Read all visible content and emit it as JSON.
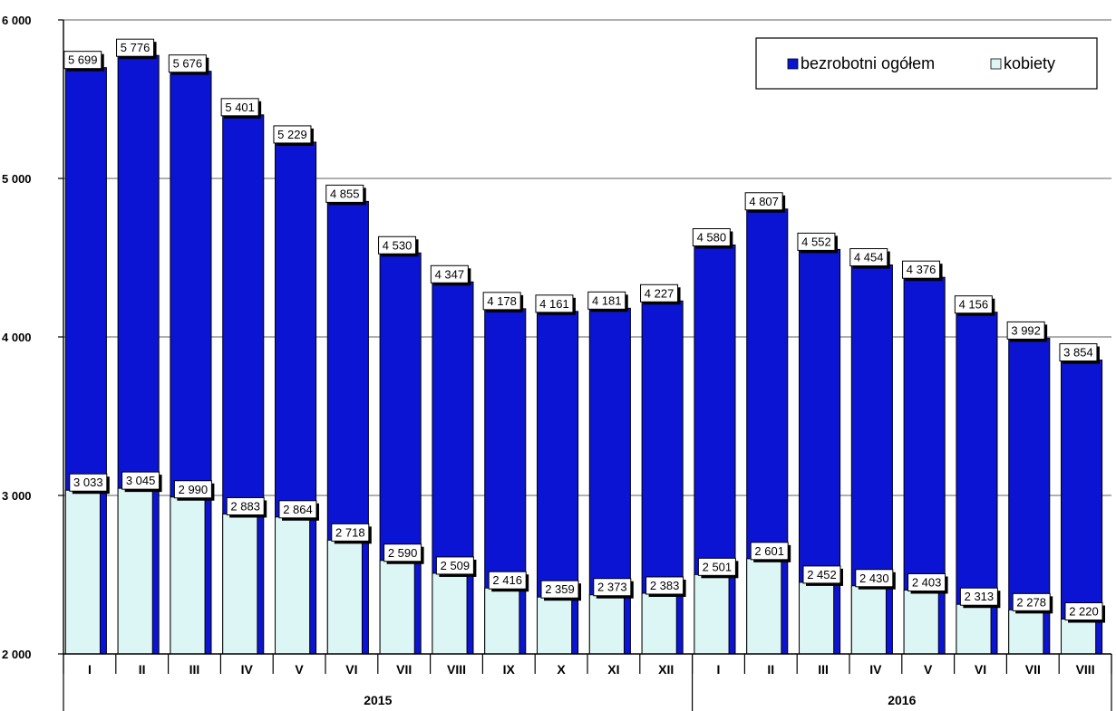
{
  "chart_data": {
    "type": "bar",
    "title": "",
    "xlabel": "",
    "ylabel": "",
    "ylim": [
      2000,
      6000
    ],
    "yticks": [
      2000,
      3000,
      4000,
      5000,
      6000
    ],
    "ytick_labels": [
      "2 000",
      "3 000",
      "4 000",
      "5 000",
      "6 000"
    ],
    "grid": true,
    "legend_position": "top-right",
    "categories": [
      "I",
      "II",
      "III",
      "IV",
      "V",
      "VI",
      "VII",
      "VIII",
      "IX",
      "X",
      "XI",
      "XII",
      "I",
      "II",
      "III",
      "IV",
      "V",
      "VI",
      "VII",
      "VIII"
    ],
    "groups": [
      {
        "label": "2015",
        "count": 12
      },
      {
        "label": "2016",
        "count": 8
      }
    ],
    "series": [
      {
        "name": "bezrobotni ogółem",
        "color": "#0a14d2",
        "values": [
          5699,
          5776,
          5676,
          5401,
          5229,
          4855,
          4530,
          4347,
          4178,
          4161,
          4181,
          4227,
          4580,
          4807,
          4552,
          4454,
          4376,
          4156,
          3992,
          3854
        ],
        "labels": [
          "5 699",
          "5 776",
          "5 676",
          "5 401",
          "5 229",
          "4 855",
          "4 530",
          "4 347",
          "4 178",
          "4 161",
          "4 181",
          "4 227",
          "4 580",
          "4 807",
          "4 552",
          "4 454",
          "4 376",
          "4 156",
          "3 992",
          "3 854"
        ]
      },
      {
        "name": "kobiety",
        "color": "#dcf6f6",
        "values": [
          3033,
          3045,
          2990,
          2883,
          2864,
          2718,
          2590,
          2509,
          2416,
          2359,
          2373,
          2383,
          2501,
          2601,
          2452,
          2430,
          2403,
          2313,
          2278,
          2220
        ],
        "labels": [
          "3 033",
          "3 045",
          "2 990",
          "2 883",
          "2 864",
          "2 718",
          "2 590",
          "2 509",
          "2 416",
          "2 359",
          "2 373",
          "2 383",
          "2 501",
          "2 601",
          "2 452",
          "2 430",
          "2 403",
          "2 313",
          "2 278",
          "2 220"
        ]
      }
    ]
  }
}
